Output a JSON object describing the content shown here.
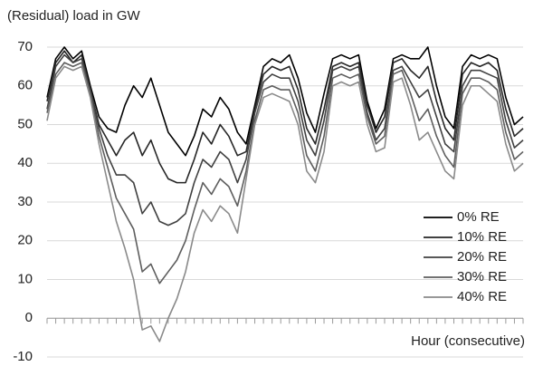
{
  "chart_data": {
    "type": "line",
    "title": "(Residual) load in GW",
    "x_label": "Hour (consecutive)",
    "categories": [
      null,
      null,
      null,
      null,
      null,
      null,
      null,
      null,
      null,
      null,
      null,
      null,
      null,
      null,
      null,
      null,
      null,
      null,
      null,
      null,
      null,
      null,
      null,
      null,
      null,
      null,
      null,
      null,
      null,
      null,
      null,
      null,
      null,
      null,
      null,
      null,
      null,
      null,
      null,
      null,
      null,
      null,
      null,
      null,
      null,
      null,
      null,
      null,
      null,
      null,
      null,
      null,
      null,
      null,
      null,
      null
    ],
    "series": [
      {
        "name": "0% RE",
        "color": "#000000",
        "values": [
          57,
          67,
          70,
          67,
          69,
          60,
          52,
          49,
          48,
          55,
          60,
          57,
          62,
          55,
          48,
          45,
          42,
          47,
          54,
          52,
          57,
          54,
          48,
          45,
          55,
          65,
          67,
          66,
          68,
          62,
          53,
          48,
          58,
          67,
          68,
          67,
          68,
          56,
          49,
          54,
          67,
          68,
          67,
          67,
          70,
          60,
          52,
          49,
          65,
          68,
          67,
          68,
          67,
          57,
          50,
          52
        ]
      },
      {
        "name": "10% RE",
        "color": "#262626",
        "values": [
          56,
          66,
          69,
          66,
          68,
          59,
          50,
          46,
          42,
          46,
          48,
          42,
          46,
          40,
          36,
          35,
          35,
          41,
          48,
          45,
          50,
          47,
          42,
          43,
          54,
          63,
          65,
          64,
          65,
          59,
          49,
          45,
          54,
          65,
          66,
          65,
          66,
          55,
          48,
          52,
          66,
          67,
          64,
          62,
          65,
          56,
          49,
          46,
          63,
          66,
          65,
          66,
          64,
          54,
          47,
          49
        ]
      },
      {
        "name": "20% RE",
        "color": "#404040",
        "values": [
          54,
          65,
          68,
          66,
          67,
          59,
          49,
          42,
          37,
          37,
          35,
          27,
          30,
          25,
          24,
          25,
          27,
          35,
          41,
          39,
          43,
          41,
          35,
          41,
          53,
          61,
          63,
          62,
          62,
          56,
          46,
          42,
          51,
          64,
          65,
          64,
          65,
          53,
          46,
          49,
          64,
          65,
          61,
          57,
          59,
          52,
          45,
          43,
          60,
          64,
          64,
          63,
          62,
          51,
          44,
          46
        ]
      },
      {
        "name": "30% RE",
        "color": "#5e5e5e",
        "values": [
          53,
          63,
          66,
          65,
          66,
          58,
          47,
          39,
          31,
          27,
          23,
          12,
          14,
          9,
          12,
          15,
          20,
          28,
          35,
          32,
          36,
          34,
          29,
          38,
          51,
          59,
          60,
          59,
          59,
          53,
          42,
          38,
          47,
          62,
          63,
          62,
          63,
          52,
          45,
          47,
          63,
          64,
          58,
          51,
          54,
          47,
          42,
          39,
          58,
          62,
          62,
          61,
          59,
          48,
          41,
          43
        ]
      },
      {
        "name": "40% RE",
        "color": "#8a8a8a",
        "values": [
          51,
          62,
          65,
          64,
          65,
          57,
          45,
          35,
          25,
          18,
          10,
          -3,
          -2,
          -6,
          0,
          5,
          12,
          22,
          28,
          25,
          29,
          27,
          22,
          36,
          50,
          57,
          58,
          57,
          56,
          50,
          38,
          35,
          43,
          60,
          61,
          60,
          61,
          50,
          43,
          44,
          61,
          62,
          55,
          46,
          48,
          43,
          38,
          36,
          55,
          60,
          60,
          58,
          56,
          45,
          38,
          40
        ]
      }
    ],
    "ylim": [
      -10,
      70
    ],
    "yticks": [
      -10,
      0,
      10,
      20,
      30,
      40,
      50,
      60,
      70
    ],
    "grid": true,
    "legend": "lower right"
  }
}
